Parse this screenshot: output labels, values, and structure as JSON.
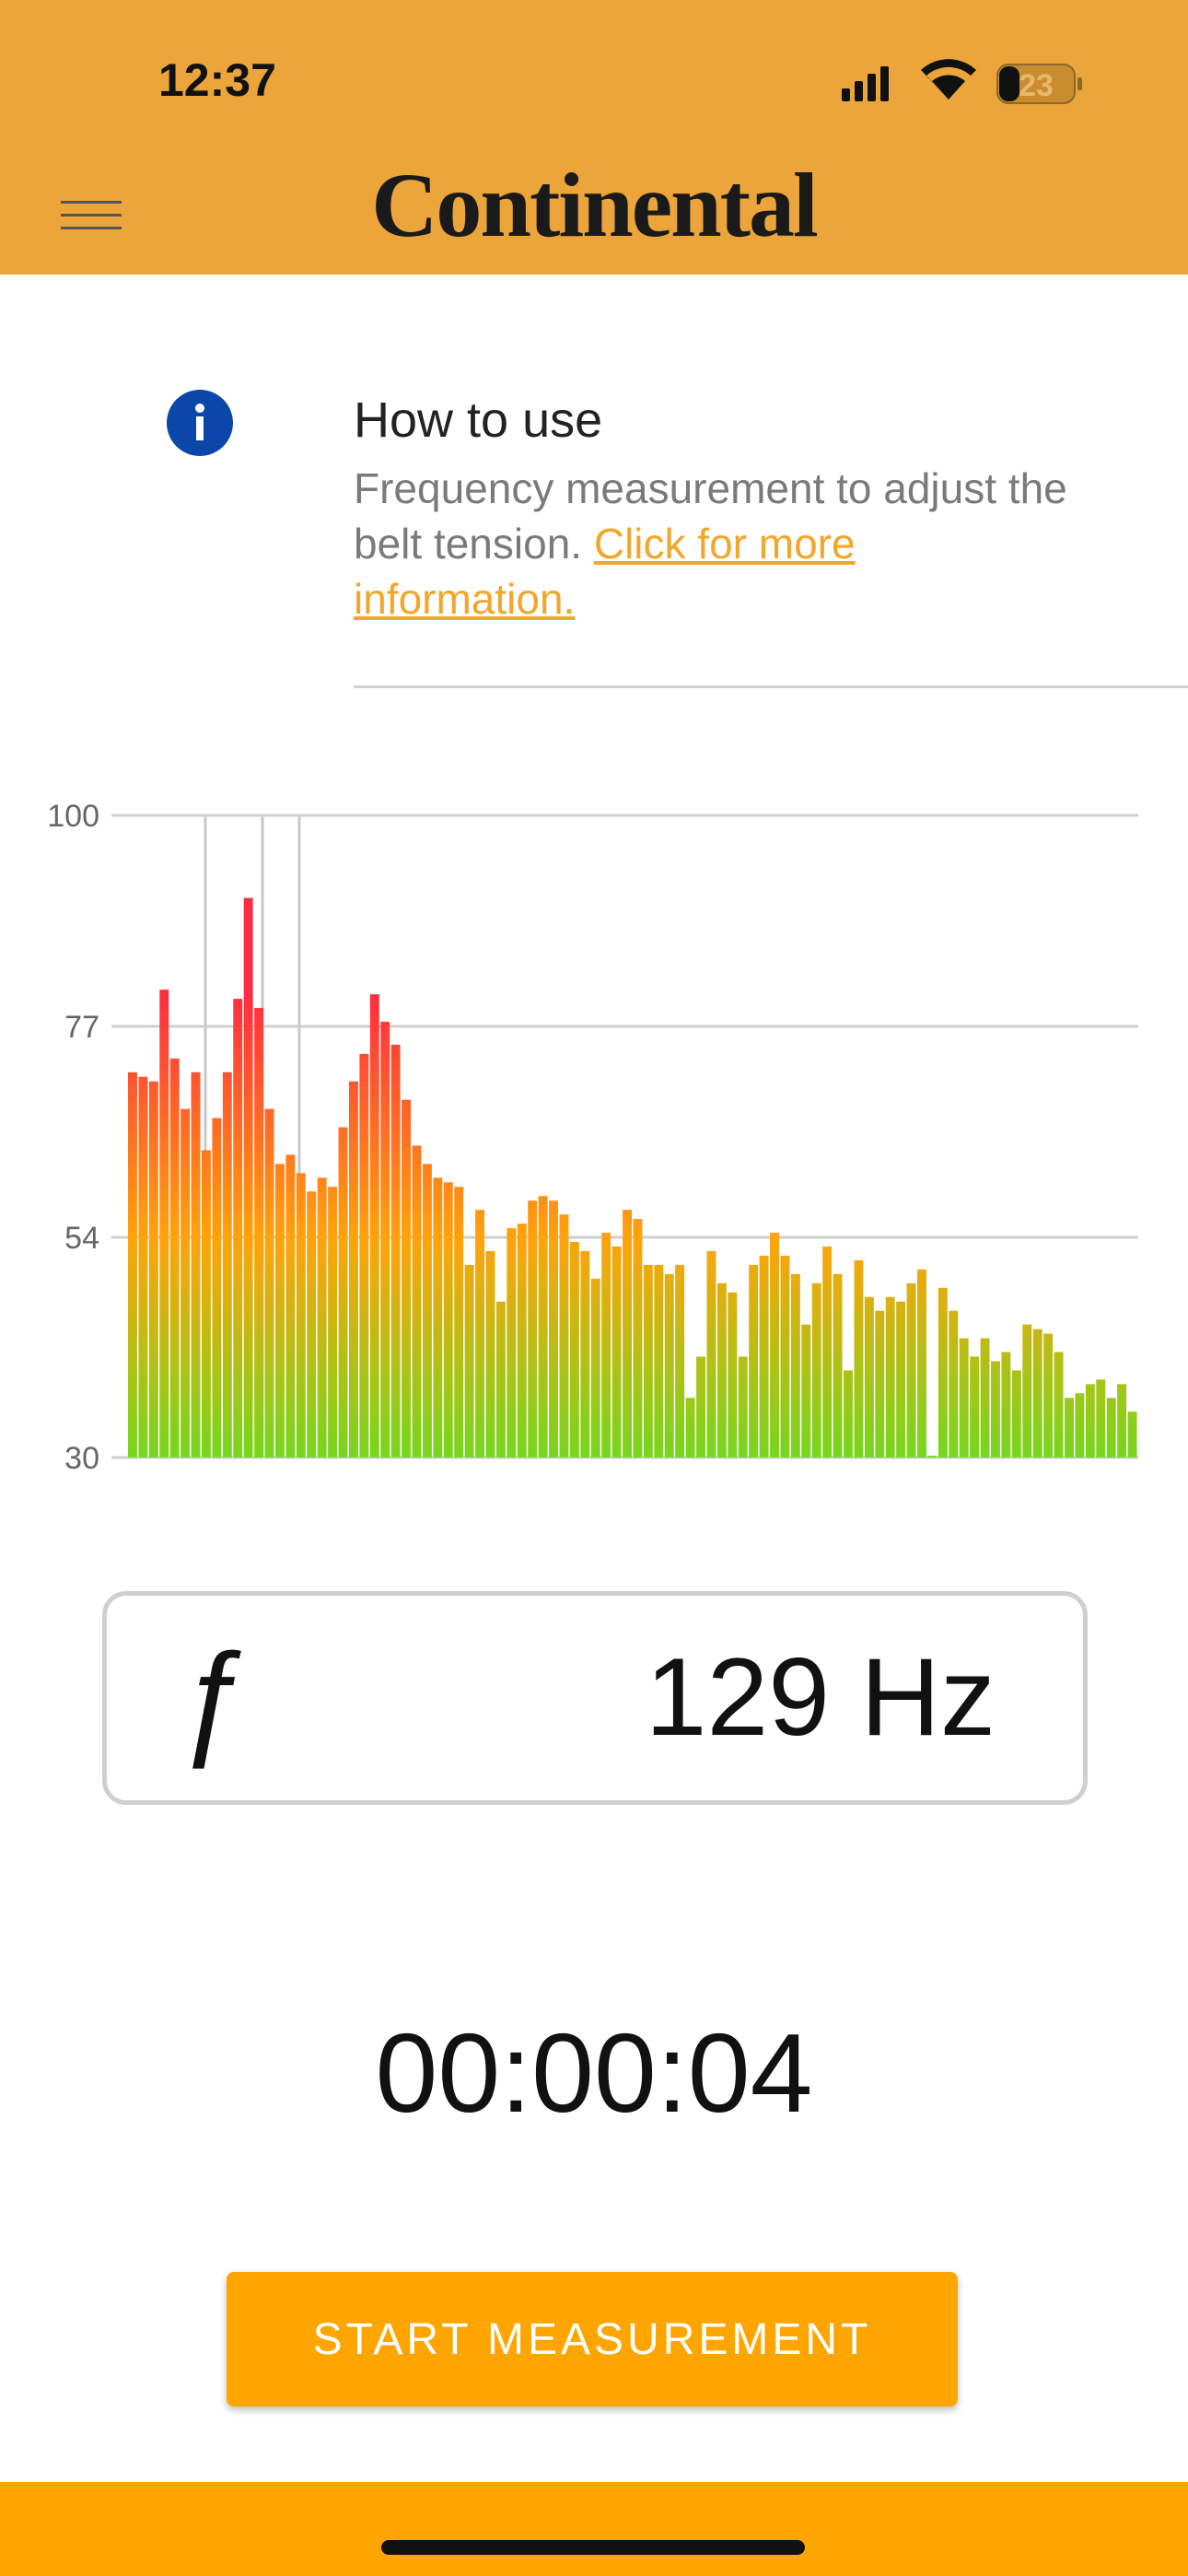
{
  "status_bar": {
    "time": "12:37",
    "battery": "23"
  },
  "header": {
    "logo": "Continental"
  },
  "info": {
    "title": "How to use",
    "text": "Frequency measurement to adjust the belt tension.",
    "link": "Click for more information."
  },
  "chart_data": {
    "type": "bar",
    "values": [
      72,
      71.5,
      71,
      81,
      73.5,
      68,
      72,
      63.5,
      67,
      72,
      80,
      91,
      79,
      68,
      62,
      63,
      61,
      59,
      60.5,
      59.5,
      66,
      71,
      74,
      80.5,
      77.5,
      75,
      69,
      64,
      62,
      60.5,
      60,
      59.5,
      51,
      57,
      52.5,
      47,
      55,
      55.5,
      58,
      58.5,
      58,
      56.5,
      53.5,
      52.5,
      49.5,
      54.5,
      53,
      57,
      56,
      51,
      51,
      50,
      51,
      36.5,
      41,
      52.5,
      49,
      48,
      41,
      51,
      52,
      54.5,
      52,
      50,
      44.5,
      49,
      53,
      50,
      39.5,
      51.5,
      47.5,
      46,
      47.5,
      47,
      49,
      50.5,
      30.2,
      48.5,
      46,
      43,
      41,
      43,
      40.5,
      41.5,
      39.5,
      44.5,
      44,
      43.5,
      41.5,
      36.5,
      37,
      38,
      38.5,
      36.5,
      38,
      35
    ],
    "ylim": [
      30,
      100
    ],
    "yticks": [
      30,
      54,
      77,
      100
    ],
    "grid": true,
    "gradient": [
      "#76d61f",
      "#ffa30c",
      "#ff2d42"
    ]
  },
  "frequency": {
    "symbol": "ƒ",
    "value": "129 Hz"
  },
  "timer": "00:00:04",
  "button": "START MEASUREMENT"
}
